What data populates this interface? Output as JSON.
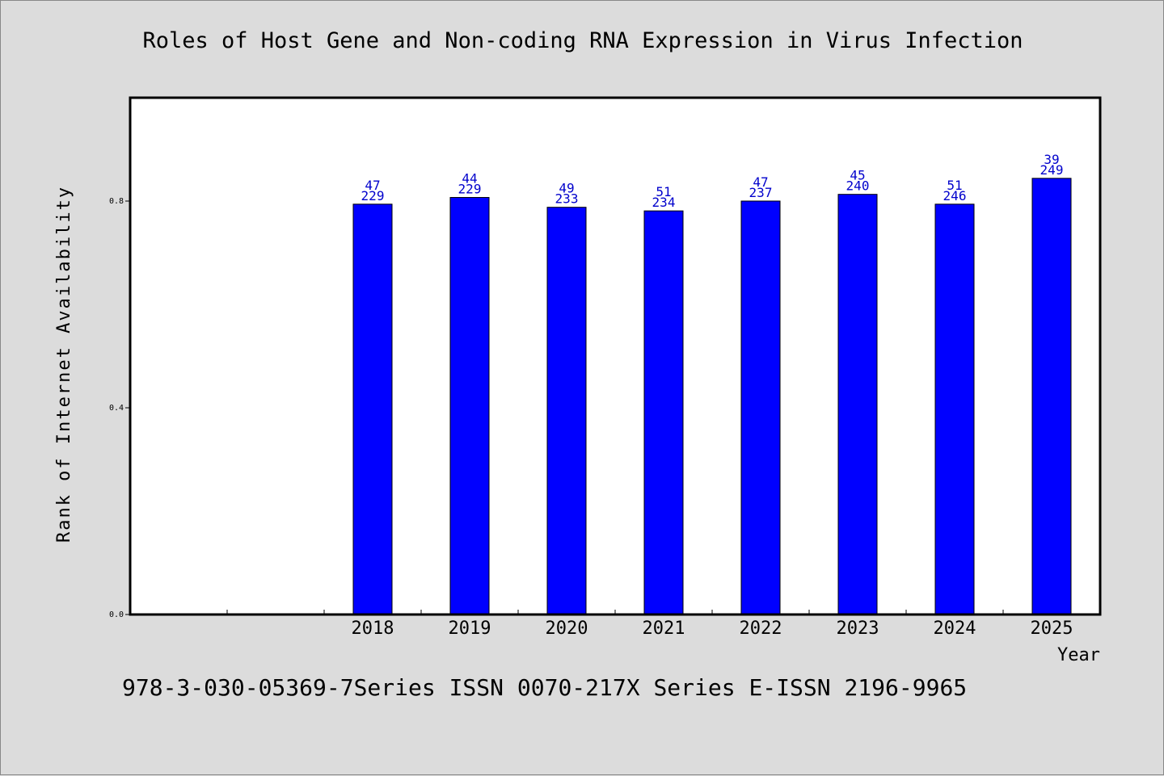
{
  "chart_data": {
    "type": "bar",
    "title": "Roles of Host Gene and Non-coding RNA Expression in Virus Infection",
    "xlabel": "Year",
    "ylabel": "Rank of Internet Availability",
    "ylim": [
      0,
      1.0
    ],
    "yticks": [
      "0.0",
      "0.4",
      "0.8"
    ],
    "categories": [
      "",
      "",
      "2018",
      "2019",
      "2020",
      "2021",
      "2022",
      "2023",
      "2024",
      "2025"
    ],
    "values": [
      null,
      null,
      0.794,
      0.807,
      0.788,
      0.781,
      0.8,
      0.813,
      0.794,
      0.844
    ],
    "labels_top": [
      "",
      "",
      "47",
      "44",
      "49",
      "51",
      "47",
      "45",
      "51",
      "39"
    ],
    "labels_bottom": [
      "",
      "",
      "229",
      "229",
      "233",
      "234",
      "237",
      "240",
      "246",
      "249"
    ],
    "bar_color": "#0000ff",
    "label_color": "#0000cc",
    "grid": false
  },
  "footer": {
    "text": "978-3-030-05369-7Series ISSN 0070-217X Series E-ISSN 2196-9965"
  }
}
